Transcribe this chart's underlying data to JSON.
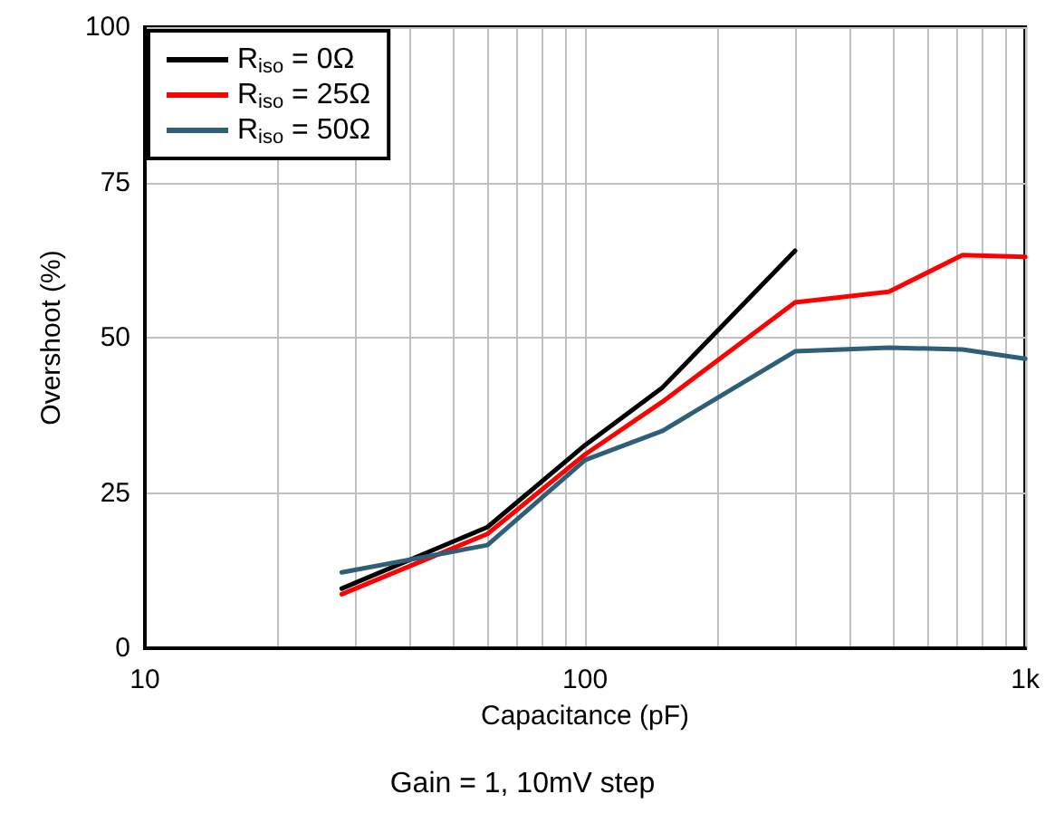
{
  "chart_data": {
    "type": "line",
    "xlabel": "Capacitance (pF)",
    "ylabel": "Overshoot (%)",
    "annotations": [
      "Gain = 1, 10mV step"
    ],
    "log": "x",
    "grid": true,
    "legend": "top left",
    "marker": "none",
    "line_style": "solid",
    "xlim": [
      10,
      1000
    ],
    "xticks": [
      10,
      {
        "value": 20,
        "label": null
      },
      {
        "value": 30,
        "label": null
      },
      {
        "value": 40,
        "label": null
      },
      {
        "value": 50,
        "label": null
      },
      {
        "value": 60,
        "label": null
      },
      {
        "value": 70,
        "label": null
      },
      {
        "value": 80,
        "label": null
      },
      {
        "value": 90,
        "label": null
      },
      100,
      {
        "value": 200,
        "label": null
      },
      {
        "value": 300,
        "label": null
      },
      {
        "value": 400,
        "label": null
      },
      {
        "value": 500,
        "label": null
      },
      {
        "value": 600,
        "label": null
      },
      {
        "value": 700,
        "label": null
      },
      {
        "value": 800,
        "label": null
      },
      {
        "value": 900,
        "label": null
      },
      {
        "value": 1000,
        "label": "1k"
      }
    ],
    "ylim": [
      0,
      100
    ],
    "yticks": [
      0,
      25,
      50,
      75,
      100
    ],
    "series": [
      {
        "name": "R$_{iso}$ = 0Ω",
        "color": "#000000",
        "x": [
          28,
          60,
          100,
          150,
          300
        ],
        "values": [
          9.6,
          19.5,
          32.7,
          42,
          64
        ]
      },
      {
        "name": "R$_{iso}$ = 25Ω",
        "color": "#ff0000",
        "x": [
          28,
          60,
          100,
          150,
          300,
          490,
          720,
          1000
        ],
        "values": [
          8.7,
          18.4,
          31.2,
          39.7,
          55.7,
          57.4,
          63.3,
          63
        ]
      },
      {
        "name": "R$_{iso}$ = 50Ω",
        "color": "#2e5e78",
        "x": [
          28,
          60,
          100,
          150,
          300,
          490,
          720,
          1000
        ],
        "values": [
          12.2,
          16.6,
          30.3,
          35,
          47.8,
          48.4,
          48.1,
          46.6
        ]
      }
    ]
  }
}
